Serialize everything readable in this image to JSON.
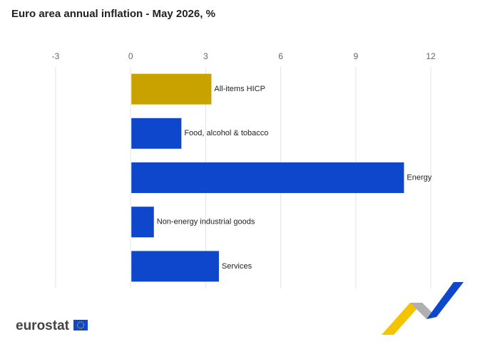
{
  "chart_data": {
    "type": "hbar",
    "title": "Euro area annual inflation - May 2026, %",
    "categories": [
      "All-items HICP",
      "Food, alcohol & tobacco",
      "Energy",
      "Non-energy industrial goods",
      "Services"
    ],
    "values": [
      3.2,
      2.0,
      10.9,
      0.9,
      3.5
    ],
    "colors": [
      "#c9a200",
      "#0e47cb",
      "#0e47cb",
      "#0e47cb",
      "#0e47cb"
    ],
    "xlim": [
      -3,
      12
    ],
    "xticks": [
      -3,
      0,
      3,
      6,
      9,
      12
    ],
    "grid": true
  },
  "logo": "eurostat"
}
